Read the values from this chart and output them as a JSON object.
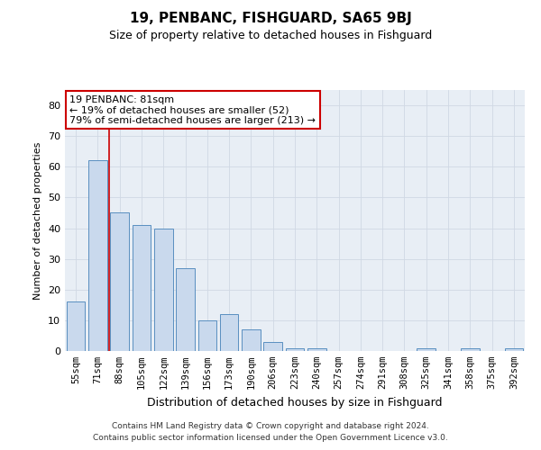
{
  "title": "19, PENBANC, FISHGUARD, SA65 9BJ",
  "subtitle": "Size of property relative to detached houses in Fishguard",
  "xlabel": "Distribution of detached houses by size in Fishguard",
  "ylabel": "Number of detached properties",
  "bar_labels": [
    "55sqm",
    "71sqm",
    "88sqm",
    "105sqm",
    "122sqm",
    "139sqm",
    "156sqm",
    "173sqm",
    "190sqm",
    "206sqm",
    "223sqm",
    "240sqm",
    "257sqm",
    "274sqm",
    "291sqm",
    "308sqm",
    "325sqm",
    "341sqm",
    "358sqm",
    "375sqm",
    "392sqm"
  ],
  "bar_values": [
    16,
    62,
    45,
    41,
    40,
    27,
    10,
    12,
    7,
    3,
    1,
    1,
    0,
    0,
    0,
    0,
    1,
    0,
    1,
    0,
    1
  ],
  "bar_color": "#c9d9ed",
  "bar_edge_color": "#5a8fc0",
  "grid_color": "#d0d8e4",
  "bg_color": "#e8eef5",
  "vline_color": "#cc0000",
  "annotation_text": "19 PENBANC: 81sqm\n← 19% of detached houses are smaller (52)\n79% of semi-detached houses are larger (213) →",
  "annotation_box_color": "#ffffff",
  "annotation_box_edge": "#cc0000",
  "ylim": [
    0,
    85
  ],
  "yticks": [
    0,
    10,
    20,
    30,
    40,
    50,
    60,
    70,
    80
  ],
  "footer_line1": "Contains HM Land Registry data © Crown copyright and database right 2024.",
  "footer_line2": "Contains public sector information licensed under the Open Government Licence v3.0."
}
